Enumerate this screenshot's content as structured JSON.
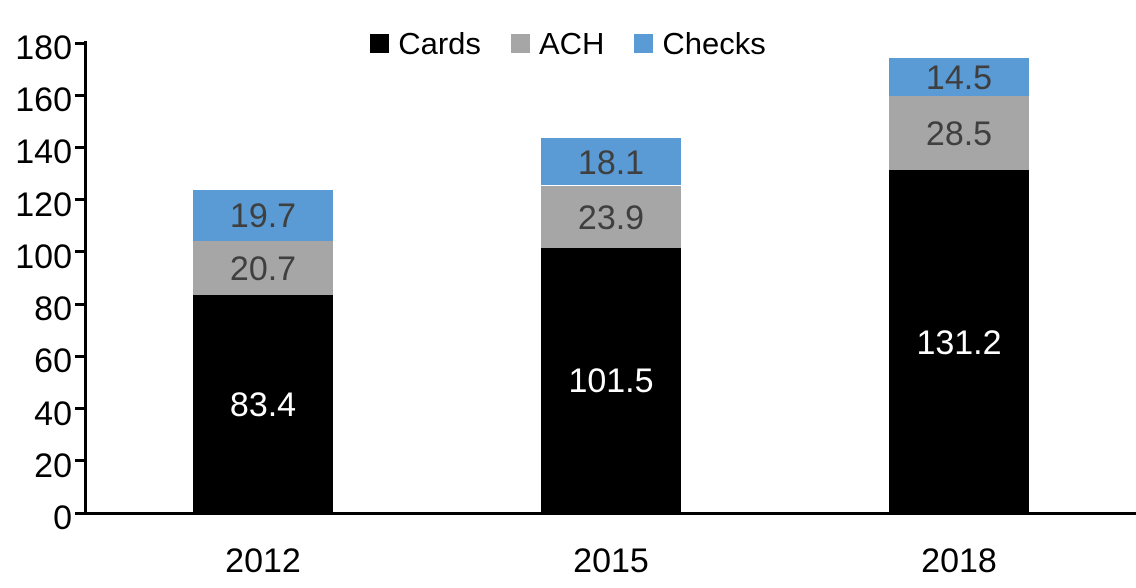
{
  "chart_data": {
    "type": "bar",
    "stacked": true,
    "title": "",
    "xlabel": "",
    "ylabel": "",
    "categories": [
      "2012",
      "2015",
      "2018"
    ],
    "series": [
      {
        "name": "Cards",
        "color": "#000000",
        "label_color": "#ffffff",
        "values": [
          83.4,
          101.5,
          131.2
        ],
        "labels": [
          "83.4",
          "101.5",
          "131.2"
        ]
      },
      {
        "name": "ACH",
        "color": "#A6A6A6",
        "label_color": "#3f3f3f",
        "values": [
          20.7,
          23.9,
          28.5
        ],
        "labels": [
          "20.7",
          "23.9",
          "28.5"
        ]
      },
      {
        "name": "Checks",
        "color": "#5B9BD5",
        "label_color": "#3f3f3f",
        "values": [
          19.7,
          18.1,
          14.5
        ],
        "labels": [
          "19.7",
          "18.1",
          "14.5"
        ]
      }
    ],
    "y_axis": {
      "min": 0,
      "max": 180,
      "step": 20,
      "ticks": [
        "0",
        "20",
        "40",
        "60",
        "80",
        "100",
        "120",
        "140",
        "160",
        "180"
      ]
    },
    "legend": {
      "position": "top",
      "entries": [
        "Cards",
        "ACH",
        "Checks"
      ]
    },
    "grid": "off",
    "axis_color": "#000000"
  }
}
